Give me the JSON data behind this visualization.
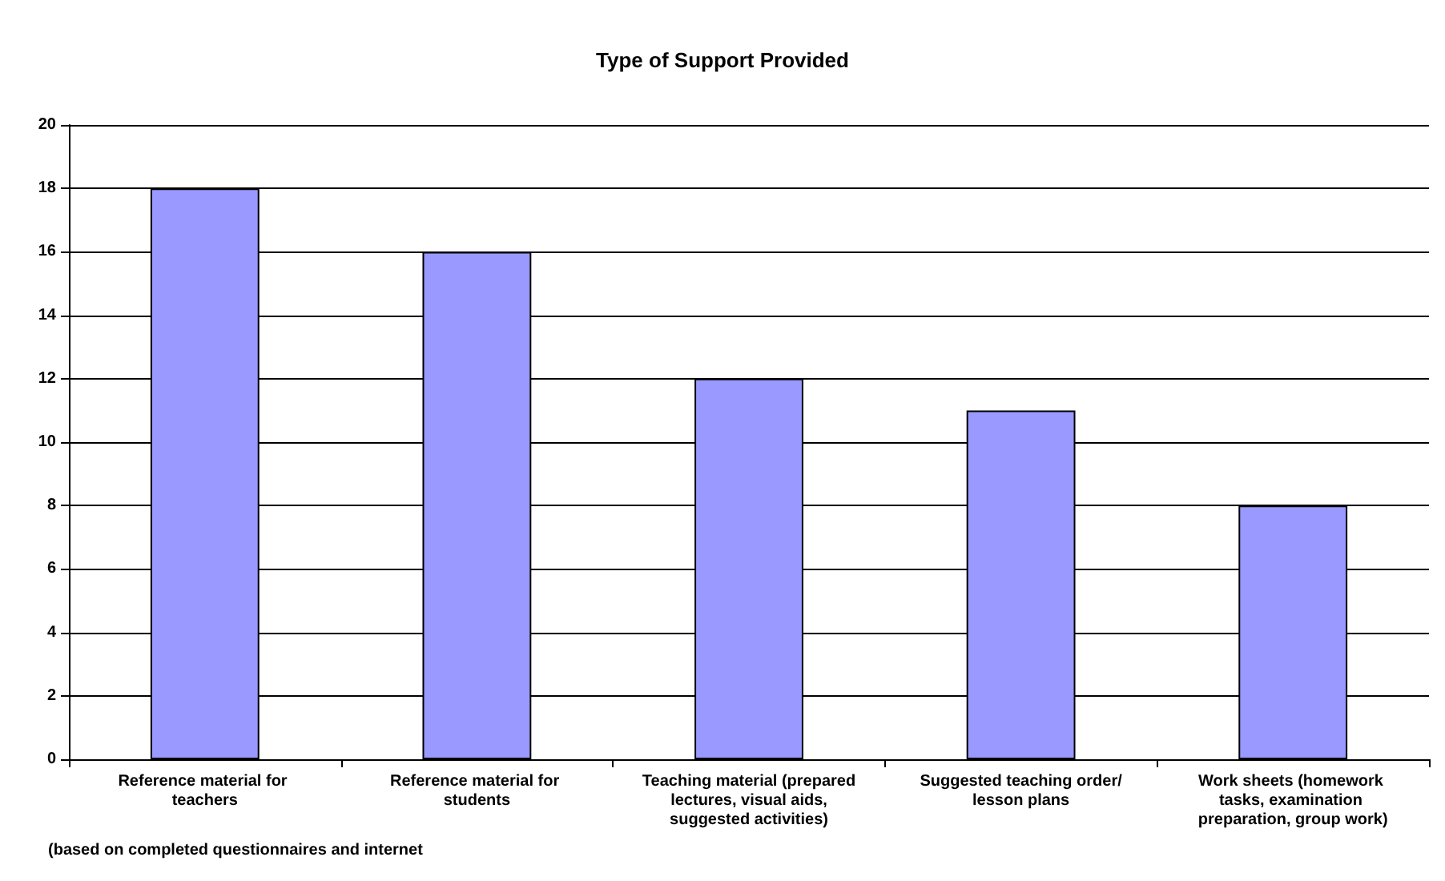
{
  "chart_data": {
    "type": "bar",
    "title": "Type of Support Provided",
    "categories": [
      "Reference material for teachers",
      "Reference material for students",
      "Teaching material (prepared lectures, visual aids, suggested activities)",
      "Suggested teaching order/lesson plans",
      "Work sheets (homework tasks, examination preparation, group work)"
    ],
    "values": [
      18,
      16,
      12,
      11,
      8
    ],
    "color": "#9999ff",
    "ylim": [
      0,
      20
    ],
    "yticks": [
      0,
      2,
      4,
      6,
      8,
      10,
      12,
      14,
      16,
      18,
      20
    ],
    "grid": "y",
    "annotations": [
      "(based on completed questionnaires and internet"
    ]
  }
}
